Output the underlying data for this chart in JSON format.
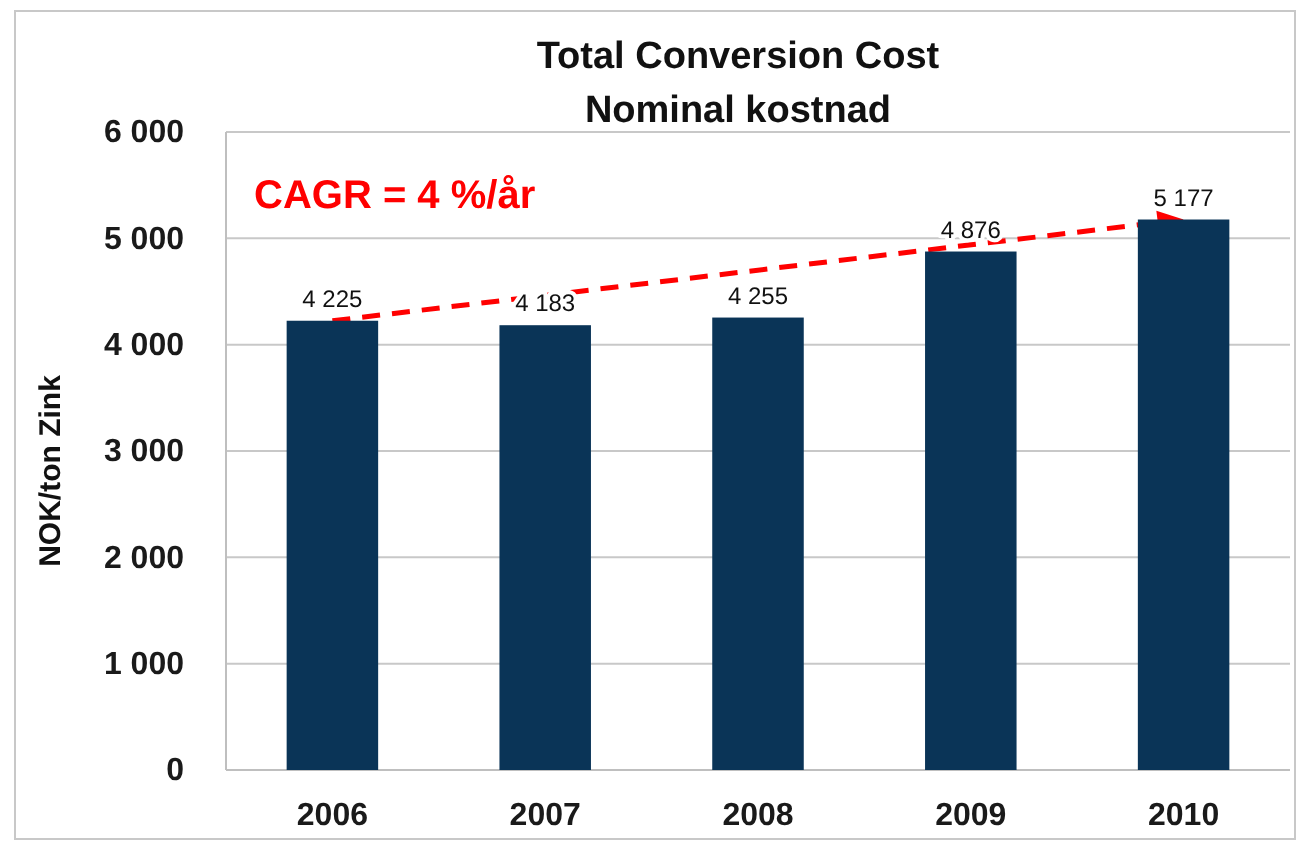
{
  "chart_data": {
    "type": "bar",
    "title": "Total Conversion Cost",
    "subtitle": "Nominal kostnad",
    "ylabel": "NOK/ton Zink",
    "categories": [
      "2006",
      "2007",
      "2008",
      "2009",
      "2010"
    ],
    "values": [
      4225,
      4183,
      4255,
      4876,
      5177
    ],
    "color": "#0a3457",
    "value_labels": [
      "4 225",
      "4 183",
      "4 255",
      "4 876",
      "5 177"
    ],
    "ylim": [
      0,
      6000
    ],
    "yticks": [
      0,
      {
        "value": 1000,
        "label": "1 000"
      },
      {
        "value": 2000,
        "label": "2 000"
      },
      {
        "value": 3000,
        "label": "3 000"
      },
      {
        "value": 4000,
        "label": "4 000"
      },
      {
        "value": 5000,
        "label": "5 000"
      },
      {
        "value": 6000,
        "label": "6 000"
      }
    ],
    "grid": "y",
    "annotations": [
      "CAGR = 4 %/år"
    ]
  }
}
